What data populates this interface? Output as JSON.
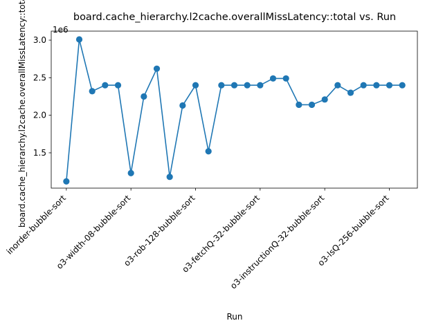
{
  "chart_data": {
    "type": "line",
    "title": "board.cache_hierarchy.l2cache.overallMissLatency::total vs. Run",
    "xlabel": "Run",
    "ylabel": "board.cache_hierarchy.l2cache.overallMissLatency::total",
    "y_offset_label": "1e6",
    "y_scale": 1000000,
    "ylim": [
      1.03,
      3.12
    ],
    "yticks": [
      1.5,
      2.0,
      2.5,
      3.0
    ],
    "ytick_labels": [
      "1.5",
      "2.0",
      "2.5",
      "3.0"
    ],
    "xtick_labels": [
      {
        "index": 0,
        "label": "inorder-bubble-sort"
      },
      {
        "index": 5,
        "label": "o3-width-08-bubble-sort"
      },
      {
        "index": 10,
        "label": "o3-rob-128-bubble-sort"
      },
      {
        "index": 15,
        "label": "o3-fetchQ-32-bubble-sort"
      },
      {
        "index": 20,
        "label": "o3-instructionQ-32-bubble-sort"
      },
      {
        "index": 25,
        "label": "o3-lsQ-256-bubble-sort"
      }
    ],
    "series": [
      {
        "values": [
          1.12,
          3.01,
          2.32,
          2.4,
          2.4,
          1.23,
          2.25,
          2.62,
          1.18,
          2.13,
          2.4,
          1.52,
          2.4,
          2.4,
          2.4,
          2.4,
          2.49,
          2.49,
          2.14,
          2.14,
          2.21,
          2.4,
          2.3,
          2.4,
          2.4,
          2.4,
          2.4
        ],
        "color": "#1f77b4"
      }
    ],
    "grid": false,
    "legend": "none"
  }
}
